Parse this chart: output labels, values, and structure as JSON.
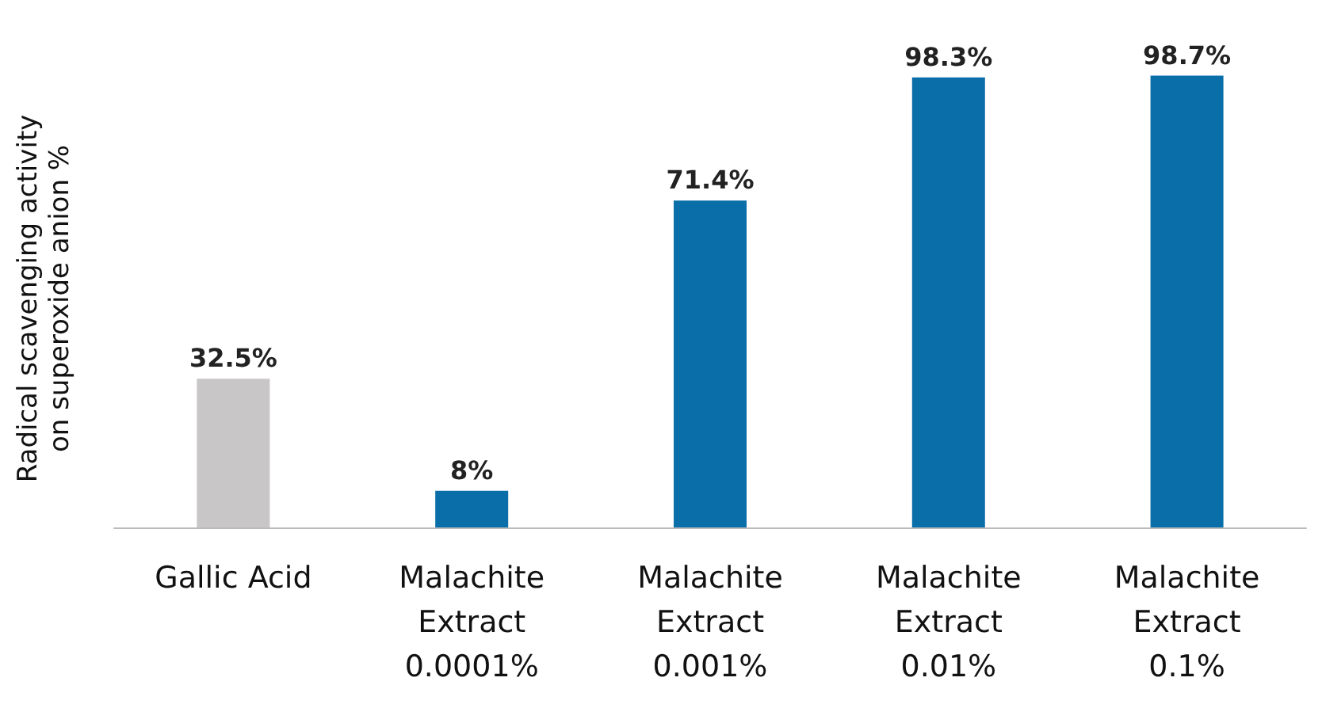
{
  "chart_data": {
    "type": "bar",
    "ylabel": "Radical scavenging activity\non superoxide anion %",
    "categories": [
      "Gallic Acid",
      "Malachite\nExtract\n0.0001%",
      "Malachite\nExtract\n0.001%",
      "Malachite\nExtract\n0.01%",
      "Malachite\nExtract\n0.1%"
    ],
    "values": [
      32.5,
      8,
      71.4,
      98.3,
      98.7
    ],
    "colors": [
      "#c8c6c6",
      "#0a6ea8",
      "#0a6ea8",
      "#0a6ea8",
      "#0a6ea8"
    ],
    "value_labels": [
      "32.5%",
      "8%",
      "71.4%",
      "98.3%",
      "98.7%"
    ],
    "tick_labels": "x",
    "grid": false
  }
}
